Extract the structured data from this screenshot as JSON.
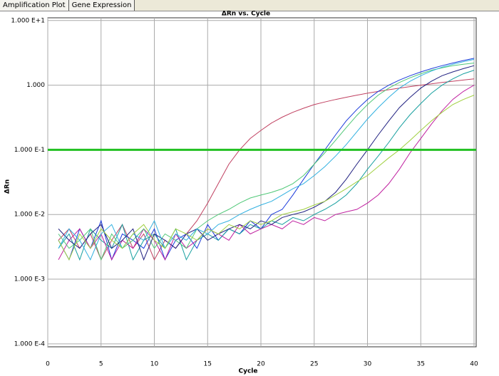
{
  "tabs": [
    "Amplification Plot",
    "Gene Expression"
  ],
  "chart_data": {
    "type": "line",
    "title": "ΔRn vs. Cycle",
    "x_label": "Cycle",
    "y_label": "ΔRn",
    "log_y": true,
    "grid": true,
    "xlim": [
      0,
      40
    ],
    "xticks": [
      0,
      5,
      10,
      15,
      20,
      25,
      30,
      35,
      40
    ],
    "ylim": [
      9e-05,
      11
    ],
    "yticks": [
      {
        "value": 10,
        "label": "1.000 E+1"
      },
      {
        "value": 1,
        "label": "1.000"
      },
      {
        "value": 0.1,
        "label": "1.000 E-1"
      },
      {
        "value": 0.01,
        "label": "1.000 E-2"
      },
      {
        "value": 0.001,
        "label": "1.000 E-3"
      },
      {
        "value": 0.0001,
        "label": "1.000 E-4"
      }
    ],
    "threshold": 0.1,
    "threshold_color": "#22c022",
    "x": [
      1,
      2,
      3,
      4,
      5,
      6,
      7,
      8,
      9,
      10,
      11,
      12,
      13,
      14,
      15,
      16,
      17,
      18,
      19,
      20,
      21,
      22,
      23,
      24,
      25,
      26,
      27,
      28,
      29,
      30,
      31,
      32,
      33,
      34,
      35,
      36,
      37,
      38,
      39,
      40
    ],
    "series": [
      {
        "color": "#c04060",
        "values": [
          0.004,
          0.006,
          0.003,
          0.005,
          0.002,
          0.004,
          0.007,
          0.003,
          0.005,
          0.002,
          0.004,
          0.003,
          0.005,
          0.008,
          0.015,
          0.03,
          0.06,
          0.1,
          0.15,
          0.2,
          0.26,
          0.32,
          0.38,
          0.44,
          0.5,
          0.55,
          0.6,
          0.65,
          0.7,
          0.75,
          0.8,
          0.85,
          0.9,
          0.95,
          1.0,
          1.05,
          1.1,
          1.15,
          1.2,
          1.25
        ]
      },
      {
        "color": "#1a3adb",
        "values": [
          0.004,
          0.002,
          0.006,
          0.003,
          0.008,
          0.002,
          0.005,
          0.004,
          0.003,
          0.006,
          0.002,
          0.004,
          0.005,
          0.003,
          0.007,
          0.004,
          0.006,
          0.005,
          0.008,
          0.006,
          0.01,
          0.012,
          0.02,
          0.035,
          0.06,
          0.1,
          0.17,
          0.28,
          0.42,
          0.6,
          0.8,
          1.0,
          1.2,
          1.4,
          1.6,
          1.8,
          2.0,
          2.2,
          2.4,
          2.6
        ]
      },
      {
        "color": "#18a0a0",
        "values": [
          0.003,
          0.005,
          0.002,
          0.006,
          0.004,
          0.003,
          0.007,
          0.002,
          0.004,
          0.005,
          0.003,
          0.006,
          0.002,
          0.004,
          0.005,
          0.004,
          0.006,
          0.005,
          0.007,
          0.006,
          0.008,
          0.007,
          0.009,
          0.008,
          0.01,
          0.012,
          0.015,
          0.02,
          0.03,
          0.05,
          0.08,
          0.13,
          0.22,
          0.35,
          0.52,
          0.75,
          1.0,
          1.25,
          1.5,
          1.7
        ]
      },
      {
        "color": "#c020a0",
        "values": [
          0.002,
          0.004,
          0.006,
          0.003,
          0.005,
          0.002,
          0.004,
          0.003,
          0.006,
          0.004,
          0.002,
          0.005,
          0.003,
          0.004,
          0.006,
          0.005,
          0.004,
          0.007,
          0.005,
          0.006,
          0.007,
          0.006,
          0.008,
          0.007,
          0.009,
          0.008,
          0.01,
          0.011,
          0.012,
          0.015,
          0.02,
          0.03,
          0.05,
          0.09,
          0.15,
          0.25,
          0.4,
          0.6,
          0.8,
          1.0
        ]
      },
      {
        "color": "#50c878",
        "values": [
          0.005,
          0.003,
          0.004,
          0.006,
          0.002,
          0.005,
          0.003,
          0.004,
          0.006,
          0.003,
          0.005,
          0.004,
          0.003,
          0.006,
          0.008,
          0.01,
          0.012,
          0.015,
          0.018,
          0.02,
          0.022,
          0.025,
          0.03,
          0.04,
          0.06,
          0.09,
          0.14,
          0.22,
          0.34,
          0.5,
          0.7,
          0.9,
          1.1,
          1.3,
          1.5,
          1.7,
          1.85,
          2.0,
          2.1,
          2.2
        ]
      },
      {
        "color": "#202080",
        "values": [
          0.006,
          0.004,
          0.003,
          0.005,
          0.007,
          0.003,
          0.004,
          0.006,
          0.002,
          0.005,
          0.004,
          0.003,
          0.005,
          0.006,
          0.004,
          0.005,
          0.006,
          0.007,
          0.006,
          0.008,
          0.007,
          0.009,
          0.01,
          0.011,
          0.013,
          0.016,
          0.022,
          0.035,
          0.06,
          0.1,
          0.17,
          0.28,
          0.45,
          0.65,
          0.9,
          1.15,
          1.4,
          1.6,
          1.8,
          2.0
        ]
      },
      {
        "color": "#30b0e0",
        "values": [
          0.003,
          0.006,
          0.004,
          0.002,
          0.005,
          0.007,
          0.003,
          0.005,
          0.004,
          0.008,
          0.003,
          0.005,
          0.004,
          0.006,
          0.005,
          0.007,
          0.008,
          0.01,
          0.012,
          0.014,
          0.016,
          0.02,
          0.025,
          0.03,
          0.04,
          0.055,
          0.08,
          0.12,
          0.19,
          0.3,
          0.45,
          0.65,
          0.9,
          1.15,
          1.4,
          1.65,
          1.9,
          2.1,
          2.3,
          2.5
        ]
      },
      {
        "color": "#a0d040",
        "values": [
          0.004,
          0.002,
          0.005,
          0.003,
          0.006,
          0.004,
          0.003,
          0.005,
          0.007,
          0.004,
          0.003,
          0.006,
          0.005,
          0.004,
          0.006,
          0.005,
          0.007,
          0.006,
          0.008,
          0.007,
          0.008,
          0.01,
          0.011,
          0.012,
          0.014,
          0.016,
          0.02,
          0.025,
          0.032,
          0.04,
          0.055,
          0.075,
          0.1,
          0.14,
          0.2,
          0.28,
          0.38,
          0.5,
          0.6,
          0.7
        ]
      }
    ]
  }
}
